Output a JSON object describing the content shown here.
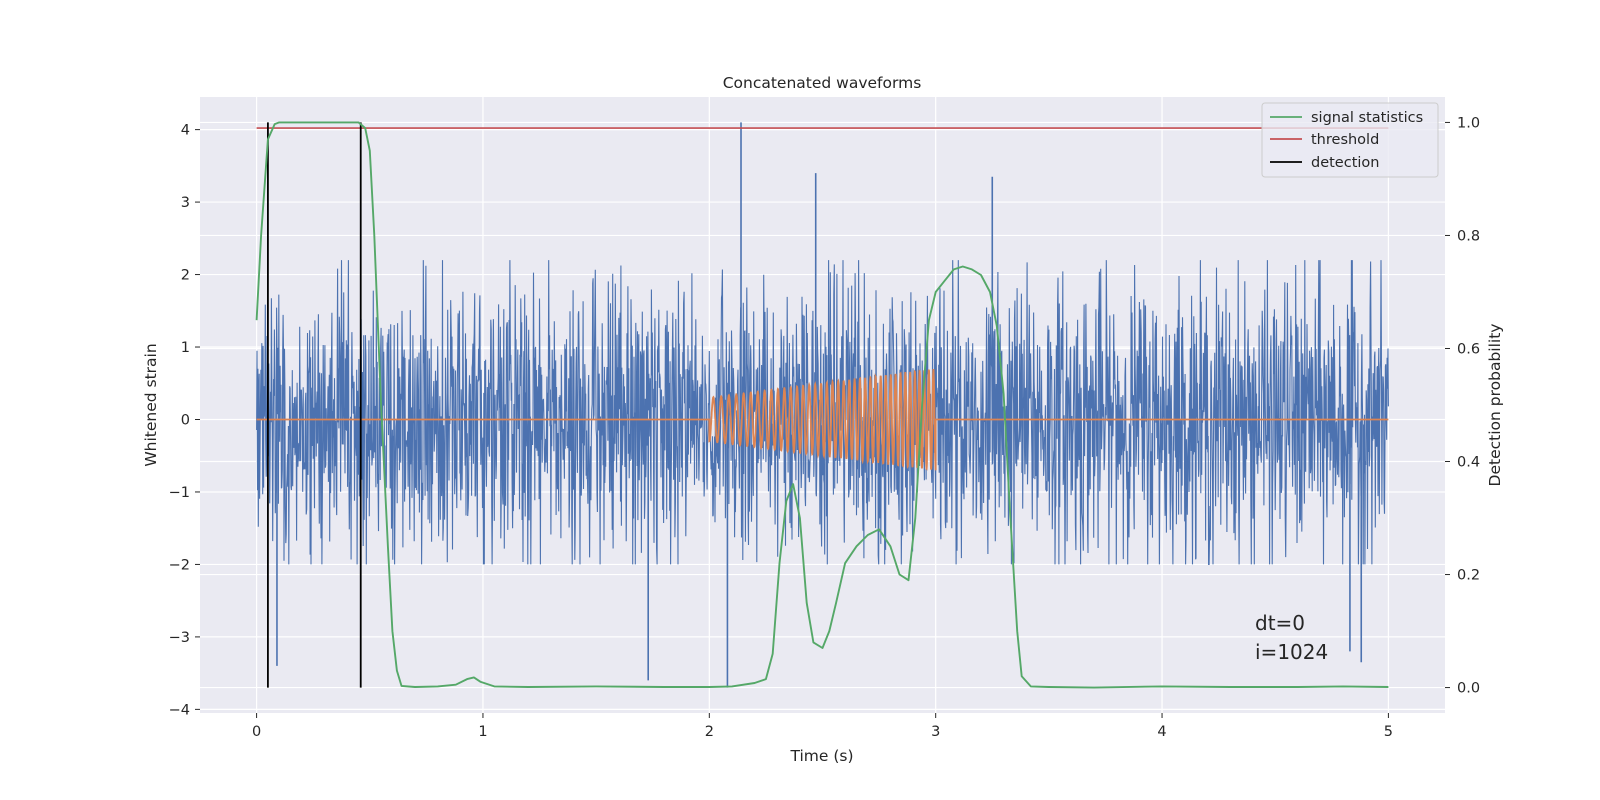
{
  "chart_data": {
    "type": "line",
    "title": "Concatenated waveforms",
    "xlabel": "Time (s)",
    "ylabel": "Whitened strain",
    "y2label": "Detection probability",
    "xlim": [
      -0.25,
      5.25
    ],
    "ylim": [
      -4.05,
      4.45
    ],
    "y2lim": [
      -0.045,
      1.045
    ],
    "xticks": [
      0,
      1,
      2,
      3,
      4,
      5
    ],
    "yticks": [
      -4,
      -3,
      -2,
      -1,
      0,
      1,
      2,
      3,
      4
    ],
    "y2ticks": [
      0.0,
      0.2,
      0.4,
      0.6,
      0.8,
      1.0
    ],
    "xtick_labels": [
      "0",
      "1",
      "2",
      "3",
      "4",
      "5"
    ],
    "ytick_labels": [
      "−4",
      "−3",
      "−2",
      "−1",
      "0",
      "1",
      "2",
      "3",
      "4"
    ],
    "y2tick_labels": [
      "0.0",
      "0.2",
      "0.4",
      "0.6",
      "0.8",
      "1.0"
    ],
    "grid": true,
    "legend_position": "top-right",
    "colors": {
      "strain": "#4c72b0",
      "injected": "#dd8452",
      "signal_statistics": "#55a868",
      "threshold": "#c44e52",
      "detection": "#000000",
      "background": "#eaeaf2",
      "grid": "#ffffff"
    },
    "series": [
      {
        "name": "",
        "role": "whitened strain noise (blue)",
        "axis": "left",
        "x_range": [
          0,
          5
        ],
        "noise_envelope": {
          "typical_min": -2.0,
          "typical_max": 2.2
        },
        "notable_spikes": [
          [
            2.14,
            4.1
          ],
          [
            2.08,
            -3.7
          ],
          [
            1.73,
            -3.6
          ],
          [
            0.09,
            -3.4
          ],
          [
            3.25,
            3.35
          ],
          [
            2.47,
            3.4
          ],
          [
            4.88,
            -3.35
          ],
          [
            4.83,
            -3.2
          ]
        ]
      },
      {
        "name": "",
        "role": "injected chirp waveform (orange)",
        "axis": "left",
        "x_range": [
          0,
          5
        ],
        "chirp": {
          "start": 2.0,
          "end": 3.0,
          "amp_start": 0.3,
          "amp_end": 0.7,
          "freq_start": 28,
          "freq_end": 50
        }
      },
      {
        "name": "signal statistics",
        "axis": "right",
        "x": [
          0,
          0.02,
          0.05,
          0.08,
          0.1,
          0.15,
          0.2,
          0.3,
          0.4,
          0.45,
          0.48,
          0.5,
          0.52,
          0.55,
          0.58,
          0.6,
          0.62,
          0.64,
          0.7,
          0.8,
          0.88,
          0.93,
          0.96,
          0.99,
          1.05,
          1.2,
          1.5,
          1.8,
          2.0,
          2.1,
          2.2,
          2.25,
          2.28,
          2.31,
          2.34,
          2.37,
          2.4,
          2.43,
          2.46,
          2.5,
          2.53,
          2.56,
          2.6,
          2.65,
          2.7,
          2.75,
          2.8,
          2.84,
          2.88,
          2.91,
          2.94,
          2.97,
          3.0,
          3.04,
          3.08,
          3.12,
          3.16,
          3.2,
          3.24,
          3.27,
          3.3,
          3.33,
          3.36,
          3.38,
          3.42,
          3.5,
          3.7,
          4.0,
          4.3,
          4.6,
          4.8,
          5.0
        ],
        "values": [
          0.65,
          0.8,
          0.97,
          0.997,
          1.0,
          1.0,
          1.0,
          1.0,
          1.0,
          1.0,
          0.99,
          0.95,
          0.8,
          0.5,
          0.25,
          0.1,
          0.03,
          0.003,
          0.001,
          0.002,
          0.005,
          0.015,
          0.018,
          0.01,
          0.002,
          0.001,
          0.002,
          0.001,
          0.001,
          0.002,
          0.008,
          0.015,
          0.06,
          0.22,
          0.33,
          0.36,
          0.3,
          0.15,
          0.08,
          0.07,
          0.1,
          0.15,
          0.22,
          0.25,
          0.27,
          0.28,
          0.25,
          0.2,
          0.19,
          0.3,
          0.5,
          0.65,
          0.7,
          0.72,
          0.74,
          0.745,
          0.74,
          0.73,
          0.7,
          0.64,
          0.52,
          0.3,
          0.1,
          0.02,
          0.002,
          0.001,
          0.0,
          0.002,
          0.001,
          0.001,
          0.002,
          0.001
        ]
      },
      {
        "name": "threshold",
        "axis": "right",
        "x": [
          0,
          5
        ],
        "values": [
          0.99,
          0.99
        ]
      },
      {
        "name": "detection",
        "axis": "right",
        "type": "vlines",
        "x": [
          0.05,
          0.46
        ],
        "y_range": [
          0.0,
          1.0
        ]
      }
    ],
    "annotations": [
      "dt=0",
      "i=1024"
    ]
  }
}
